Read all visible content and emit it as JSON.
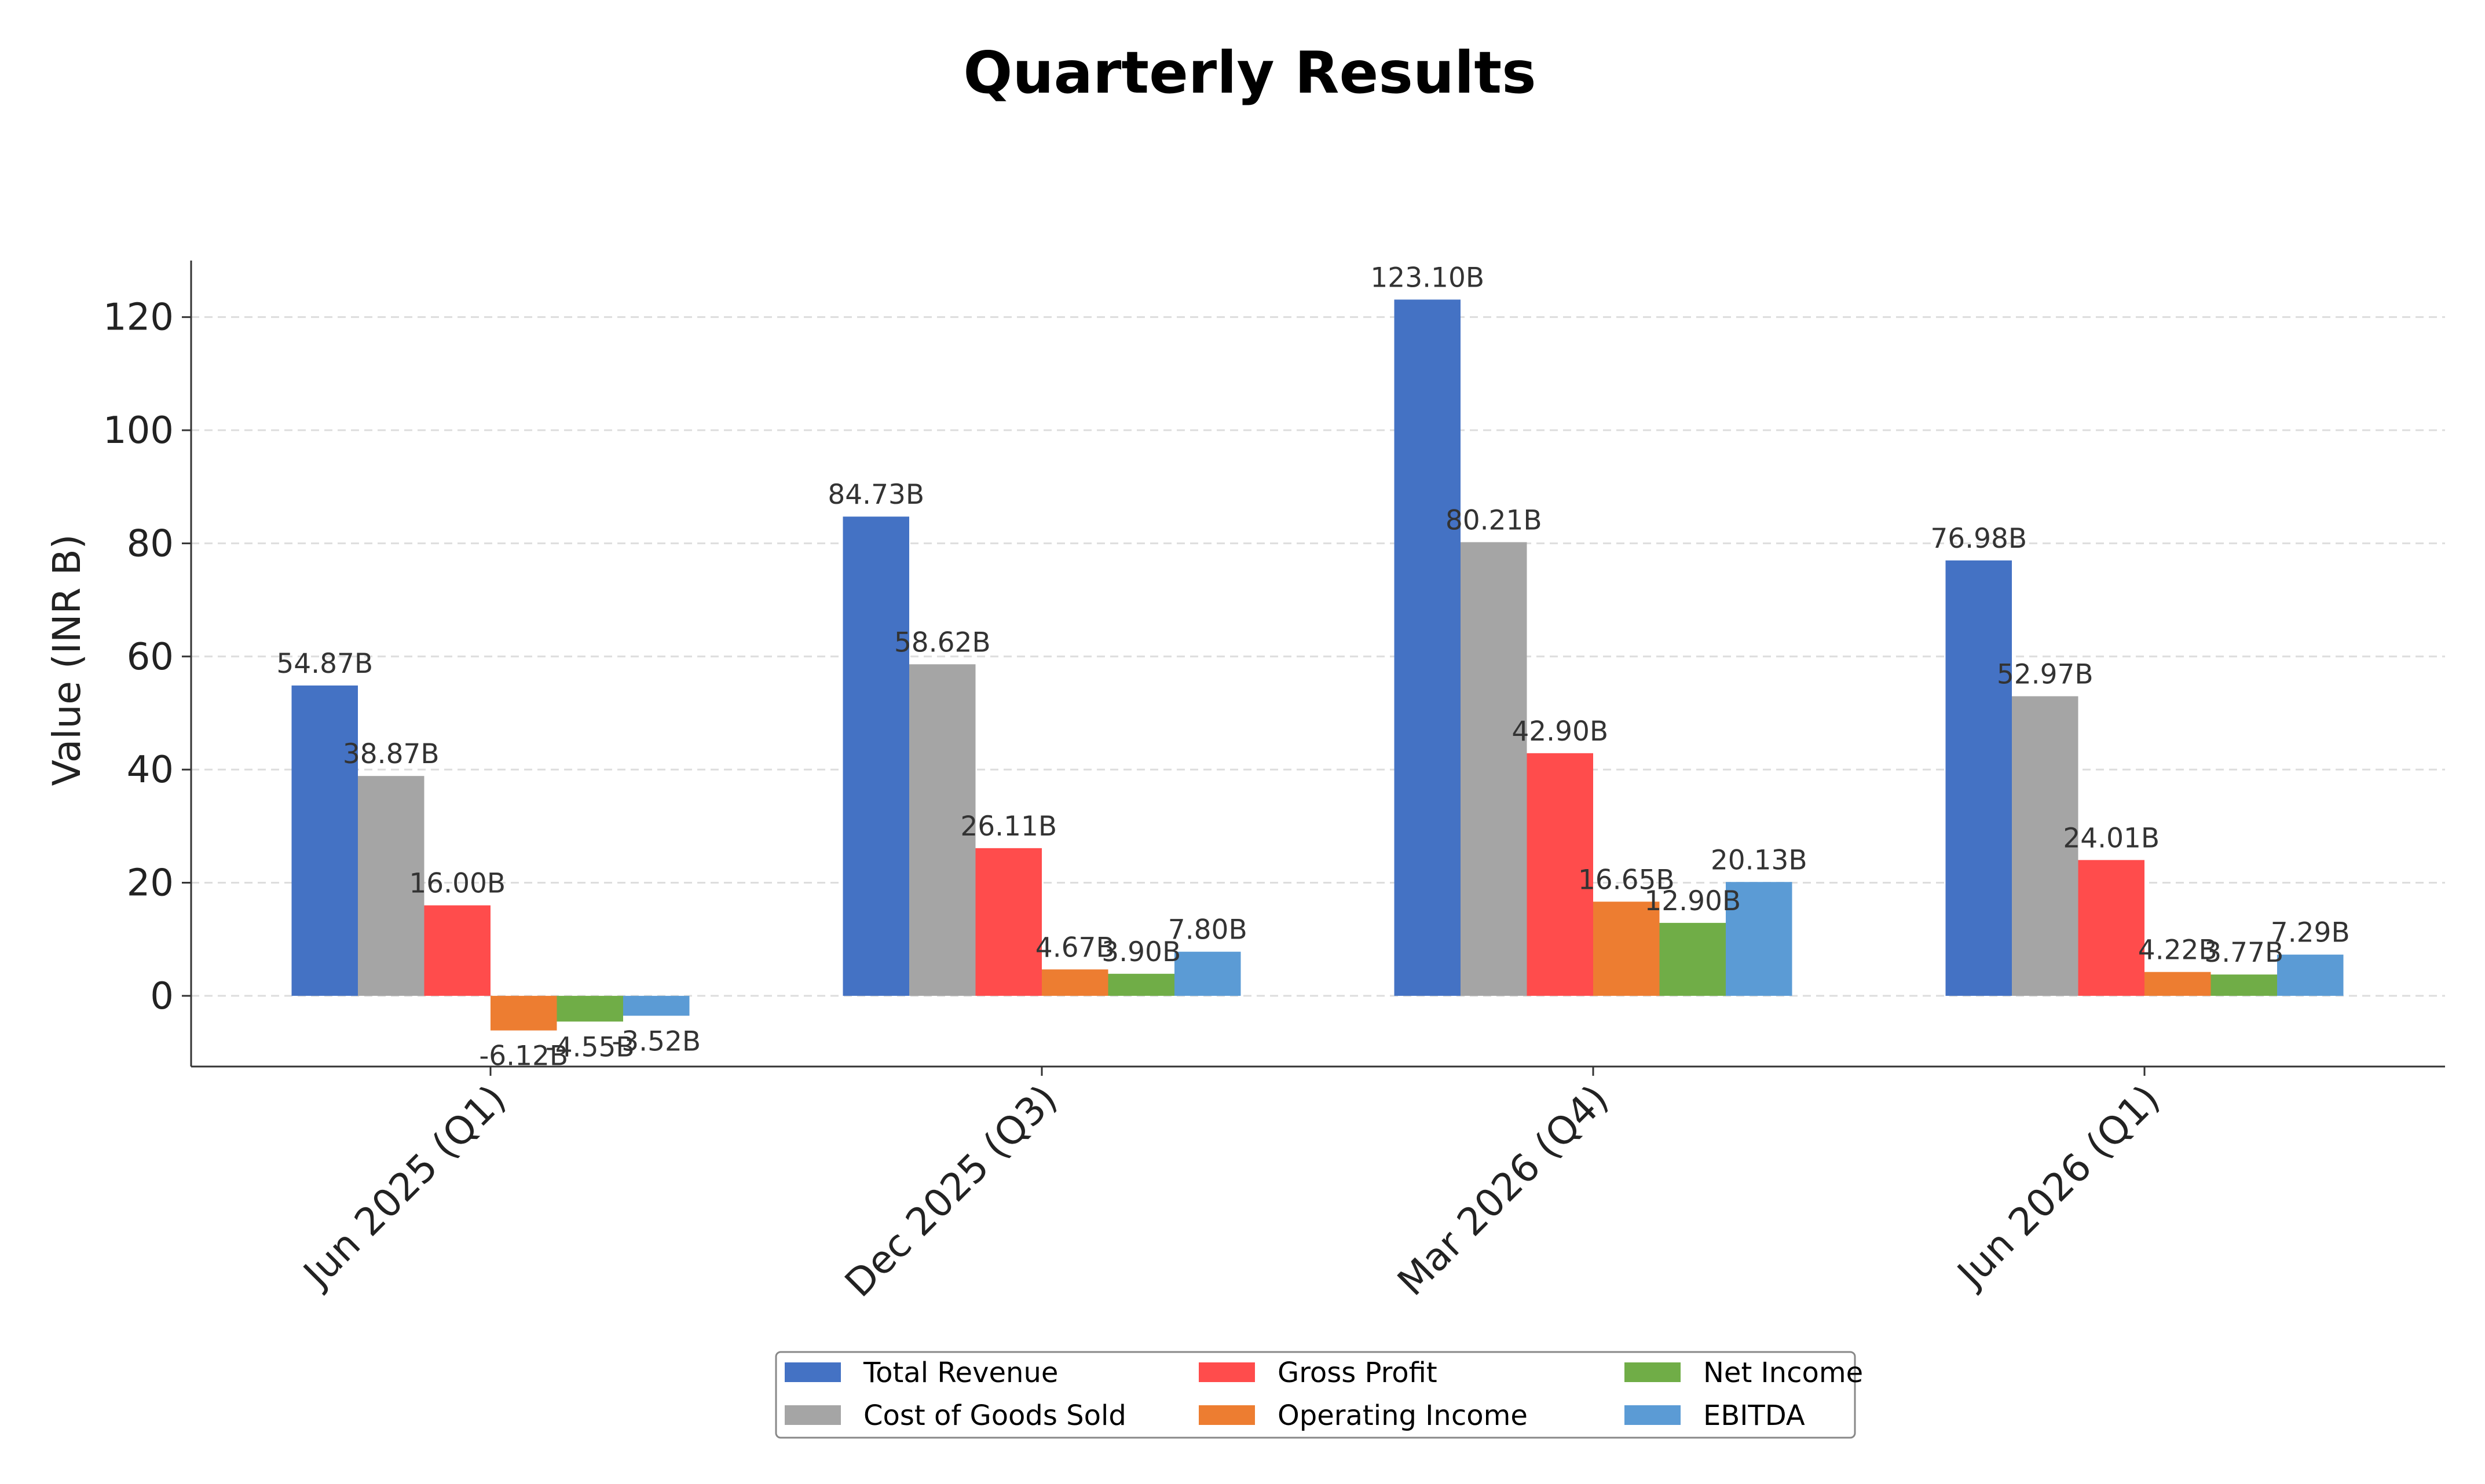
{
  "chart_data": {
    "type": "bar",
    "title": "Quarterly Results",
    "xlabel": "",
    "ylabel": "Value (INR B)",
    "ylim": [
      -12.5,
      130
    ],
    "yticks": [
      0,
      20,
      40,
      60,
      80,
      100,
      120
    ],
    "grid": true,
    "legend_position": "bottom-center",
    "categories": [
      "Jun 2025 (Q1)",
      "Dec 2025 (Q3)",
      "Mar 2026 (Q4)",
      "Jun 2026 (Q1)"
    ],
    "series": [
      {
        "name": "Total Revenue",
        "color": "#4472C4",
        "values": [
          54.87,
          84.73,
          123.1,
          76.98
        ],
        "labels": [
          "54.87B",
          "84.73B",
          "123.10B",
          "76.98B"
        ]
      },
      {
        "name": "Cost of Goods Sold",
        "color": "#A5A5A5",
        "values": [
          38.87,
          58.62,
          80.21,
          52.97
        ],
        "labels": [
          "38.87B",
          "58.62B",
          "80.21B",
          "52.97B"
        ]
      },
      {
        "name": "Gross Profit",
        "color": "#FF4C4C",
        "values": [
          16.0,
          26.11,
          42.9,
          24.01
        ],
        "labels": [
          "16.00B",
          "26.11B",
          "42.90B",
          "24.01B"
        ]
      },
      {
        "name": "Operating Income",
        "color": "#ED7D31",
        "values": [
          -6.12,
          4.67,
          16.65,
          4.22
        ],
        "labels": [
          "-6.12B",
          "4.67B",
          "16.65B",
          "4.22B"
        ]
      },
      {
        "name": "Net Income",
        "color": "#70AD47",
        "values": [
          -4.55,
          3.9,
          12.9,
          3.77
        ],
        "labels": [
          "-4.55B",
          "3.90B",
          "12.90B",
          "3.77B"
        ]
      },
      {
        "name": "EBITDA",
        "color": "#5B9BD5",
        "values": [
          -3.52,
          7.8,
          20.13,
          7.29
        ],
        "labels": [
          "-3.52B",
          "7.80B",
          "20.13B",
          "7.29B"
        ]
      }
    ]
  }
}
